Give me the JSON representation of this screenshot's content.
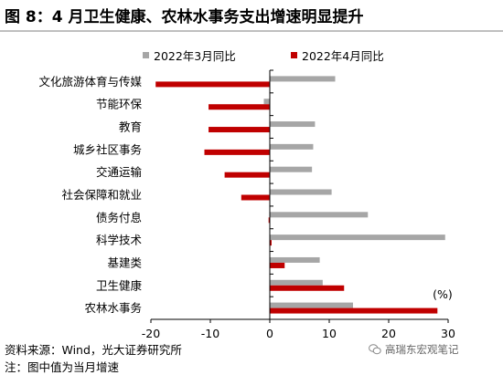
{
  "title": "图 8：4 月卫生健康、农林水事务支出增速明显提升",
  "colors": {
    "series1": "#a6a6a6",
    "series2": "#c00000",
    "axis": "#000000"
  },
  "chart_data": {
    "type": "bar",
    "orientation": "horizontal",
    "categories": [
      "文化旅游体育与传媒",
      "节能环保",
      "教育",
      "城乡社区事务",
      "交通运输",
      "社会保障和就业",
      "债务付息",
      "科学技术",
      "基建类",
      "卫生健康",
      "农林水事务"
    ],
    "series": [
      {
        "name": "2022年3月同比",
        "values": [
          11.0,
          -1.0,
          7.6,
          7.3,
          7.1,
          10.4,
          16.5,
          29.5,
          8.4,
          8.9,
          14.0
        ]
      },
      {
        "name": "2022年4月同比",
        "values": [
          -19.2,
          -10.3,
          -10.3,
          -11.0,
          -7.6,
          -4.8,
          -0.2,
          0.3,
          2.5,
          12.5,
          28.2
        ]
      }
    ],
    "xlim": [
      -20,
      30
    ],
    "xticks": [
      -20,
      -10,
      0,
      10,
      20,
      30
    ],
    "xtick_labels": [
      "-20",
      "-10",
      "0",
      "10",
      "20",
      "30"
    ],
    "unit_label": "(%)",
    "grid": false,
    "legend_position": "top"
  },
  "footer": {
    "source": "资料来源：Wind，光大证券研究所",
    "note": "注：图中值为当月增速"
  },
  "watermark": {
    "text": "高瑞东宏观笔记",
    "icon": "wechat-icon"
  }
}
